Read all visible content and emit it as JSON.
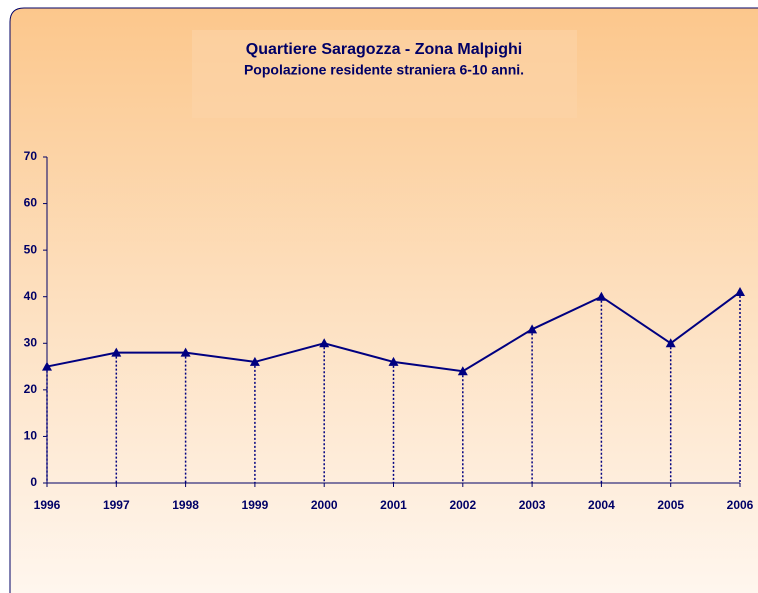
{
  "chart_data": {
    "type": "line",
    "title": "Quartiere Saragozza - Zona Malpighi",
    "subtitle": "Popolazione residente straniera 6-10 anni.",
    "categories": [
      "1996",
      "1997",
      "1998",
      "1999",
      "2000",
      "2001",
      "2002",
      "2003",
      "2004",
      "2005",
      "2006"
    ],
    "values": [
      25,
      28,
      28,
      26,
      30,
      26,
      24,
      33,
      40,
      30,
      41
    ],
    "color": "#000080",
    "ylim": [
      0,
      70
    ],
    "yticks": [
      0,
      10,
      20,
      30,
      40,
      50,
      60,
      70
    ],
    "drop_lines": true,
    "marker": "triangle"
  }
}
